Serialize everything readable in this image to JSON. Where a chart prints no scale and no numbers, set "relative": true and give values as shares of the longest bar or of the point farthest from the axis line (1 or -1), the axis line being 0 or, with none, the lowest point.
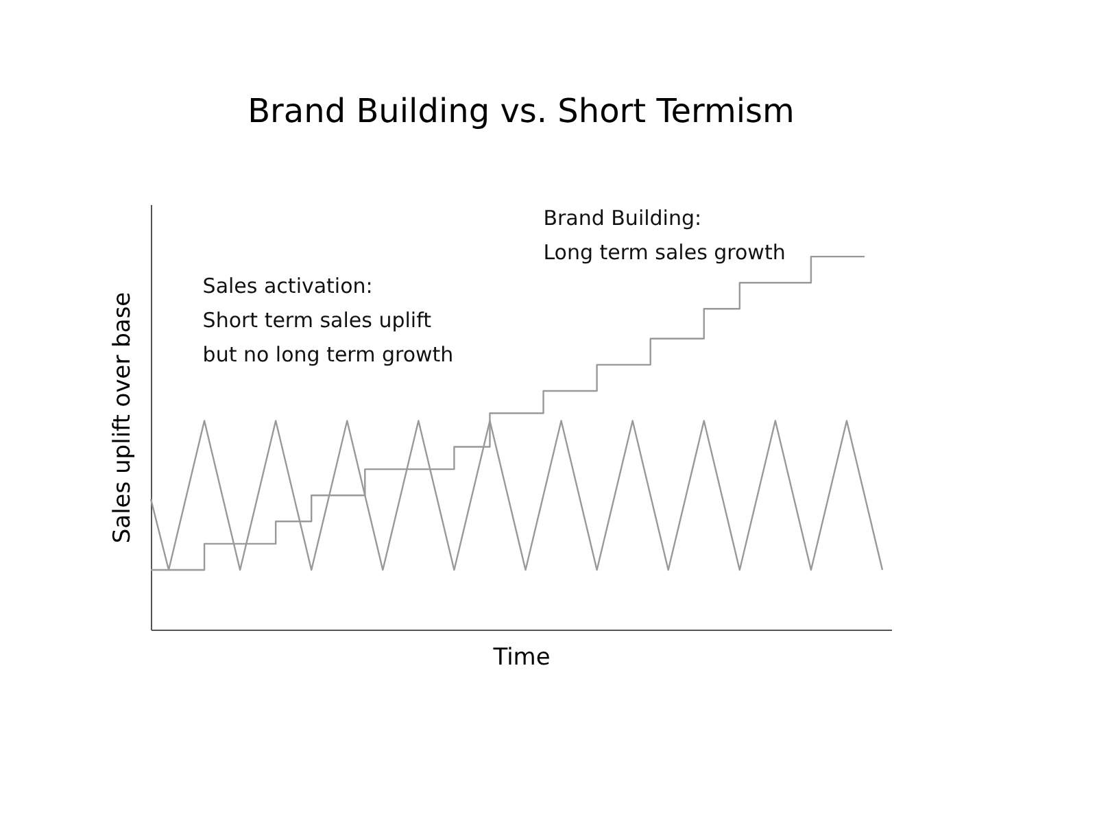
{
  "chart_data": {
    "type": "line",
    "title": "Brand Building vs. Short Termism",
    "xlabel": "Time",
    "ylabel": "Sales uplift over base",
    "relative": true,
    "grid": false,
    "tick_labels": false,
    "categories": [
      null,
      null,
      null,
      null,
      null,
      null,
      null,
      null,
      null,
      null,
      null,
      null,
      null,
      null,
      null,
      null,
      null,
      null,
      null,
      null,
      null,
      null,
      null,
      null,
      null,
      null,
      null,
      null,
      null,
      null,
      null,
      null,
      null,
      null,
      null,
      null,
      null,
      null,
      null,
      null,
      null,
      null
    ],
    "series": [
      {
        "color": "#999999",
        "values": [
          0.35,
          0.16,
          0.36,
          0.56,
          0.36,
          0.16,
          0.36,
          0.56,
          0.36,
          0.16,
          0.36,
          0.56,
          0.36,
          0.16,
          0.36,
          0.56,
          0.36,
          0.16,
          0.36,
          0.56,
          0.36,
          0.16,
          0.36,
          0.56,
          0.36,
          0.16,
          0.36,
          0.56,
          0.36,
          0.16,
          0.36,
          0.56,
          0.36,
          0.16,
          0.36,
          0.56,
          0.36,
          0.16,
          0.36,
          0.56,
          0.36,
          0.16
        ]
      },
      {
        "type": "step",
        "color": "#999999",
        "values": [
          0.16,
          0.16,
          0.16,
          0.23,
          0.23,
          0.23,
          0.23,
          0.29,
          0.29,
          0.36,
          0.36,
          0.36,
          0.43,
          0.43,
          0.43,
          0.43,
          0.43,
          0.49,
          0.49,
          0.58,
          0.58,
          0.58,
          0.64,
          0.64,
          0.64,
          0.71,
          0.71,
          0.71,
          0.78,
          0.78,
          0.78,
          0.86,
          0.86,
          0.93,
          0.93,
          0.93,
          0.93,
          1.0,
          1.0,
          1.0,
          1.0,
          null
        ]
      }
    ],
    "annotations": [
      "Sales activation:\nShort term sales uplift\nbut no long term growth",
      "Brand Building:\nLong term sales growth"
    ]
  }
}
